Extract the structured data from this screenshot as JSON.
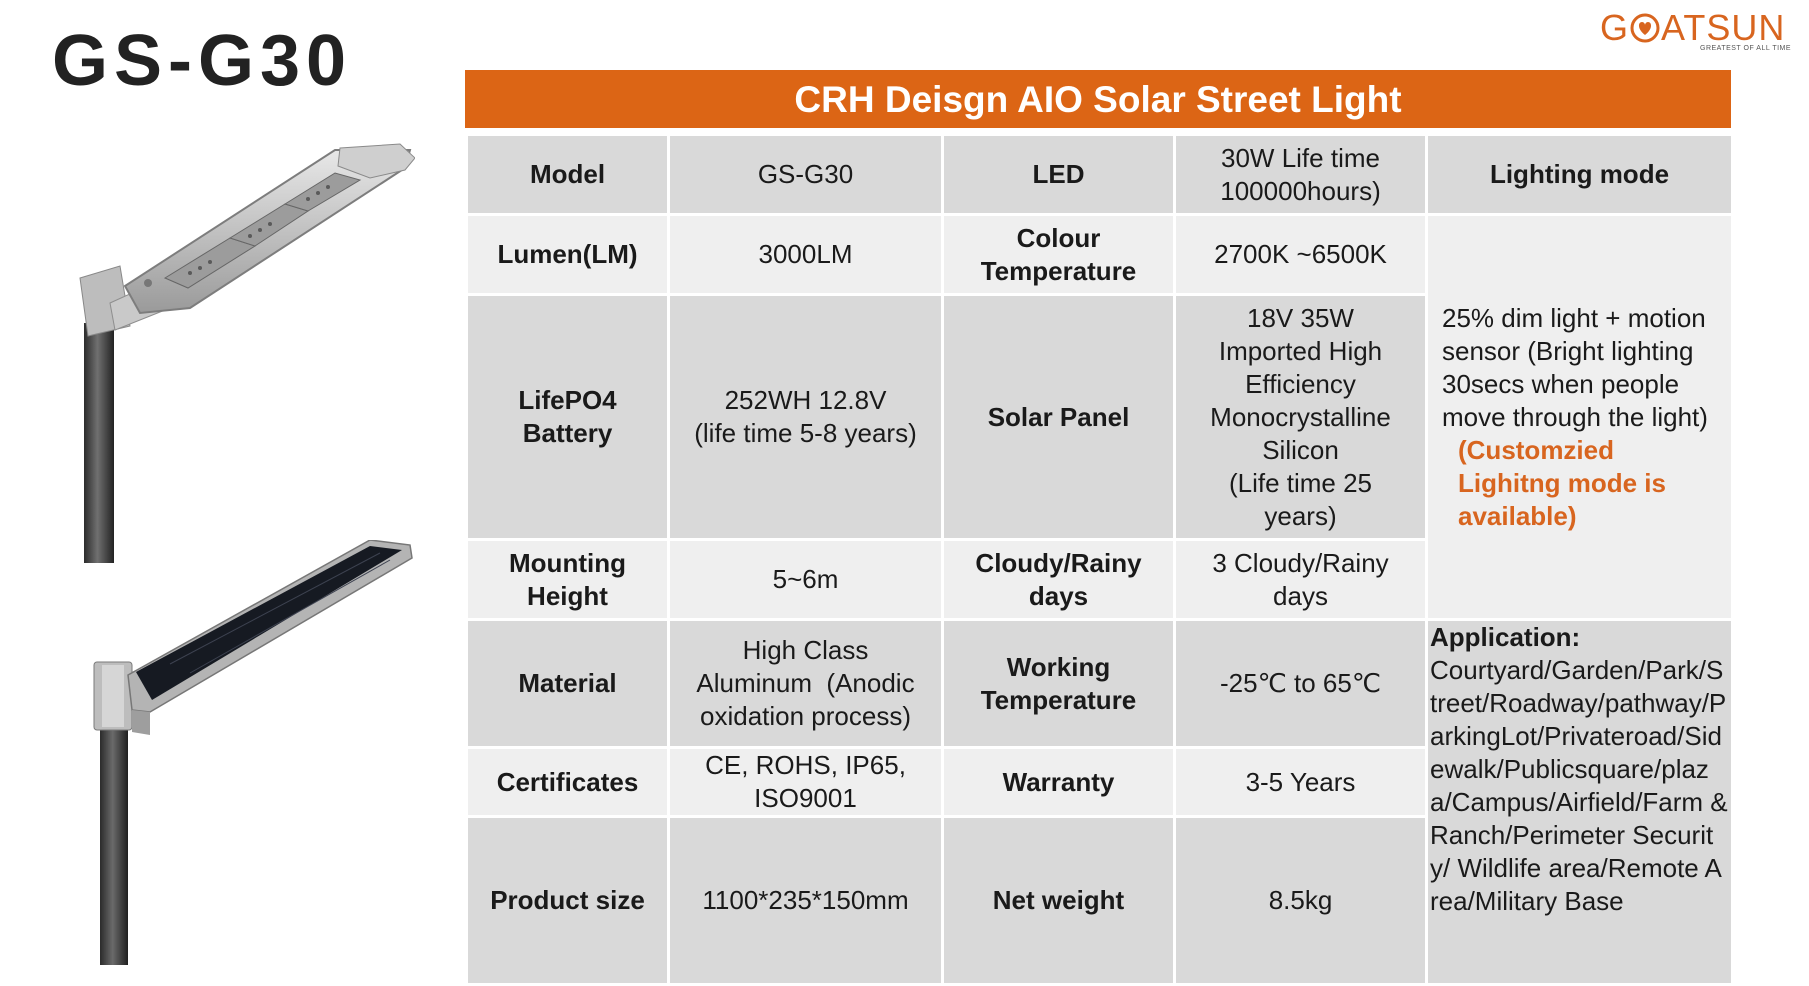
{
  "title": "GS-G30",
  "logo": {
    "text_before": "G",
    "text_after": "ATSUN",
    "tagline": "GREATEST OF ALL TIME",
    "brand_color": "#d8651f",
    "icon": "heart-icon"
  },
  "banner": {
    "text": "CRH Deisgn AIO Solar Street Light",
    "color": "#dc6515"
  },
  "specs": {
    "model": {
      "label": "Model",
      "value": "GS-G30"
    },
    "led": {
      "label": "LED",
      "value_line1": "30W Life time",
      "value_line2": "100000hours)"
    },
    "lumen": {
      "label": "Lumen(LM)",
      "value": "3000LM"
    },
    "colour_temperature": {
      "label_line1": "Colour",
      "label_line2": "Temperature",
      "value": "2700K ~6500K"
    },
    "battery": {
      "label_line1": "LifePO4",
      "label_line2": "Battery",
      "value_line1": "252WH 12.8V",
      "value_line2": "(life time 5-8 years)"
    },
    "solar_panel": {
      "label": "Solar Panel",
      "value_lines": [
        "18V 35W",
        "Imported High",
        "Efficiency",
        "Monocrystalline",
        "Silicon",
        "(Life time 25",
        "years)"
      ]
    },
    "mounting_height": {
      "label_line1": "Mounting",
      "label_line2": "Height",
      "value": "5~6m"
    },
    "cloudy_days": {
      "label_line1": "Cloudy/Rainy",
      "label_line2": "days",
      "value_line1": "3 Cloudy/Rainy",
      "value_line2": "days"
    },
    "material": {
      "label": "Material",
      "value_lines": [
        "High Class",
        "Aluminum  (Anodic",
        "oxidation process)"
      ]
    },
    "working_temperature": {
      "label_line1": "Working",
      "label_line2": "Temperature",
      "value": "-25℃ to 65℃"
    },
    "certificates": {
      "label": "Certificates",
      "value_line1": "CE, ROHS, IP65,",
      "value_line2": "ISO9001"
    },
    "warranty": {
      "label": "Warranty",
      "value": "3-5 Years"
    },
    "product_size": {
      "label": "Product size",
      "value": "1100*235*150mm"
    },
    "net_weight": {
      "label": "Net weight",
      "value": "8.5kg"
    }
  },
  "lighting_mode": {
    "label": "Lighting mode",
    "description": "25% dim light + motion sensor (Bright lighting 30secs when people move through the light)",
    "custom_note": "(Customzied Lighitng mode is available)"
  },
  "application": {
    "label": "Application:",
    "text": "Courtyard/Garden/Park/Street/Roadway/pathway/ParkingLot/Privateroad/Sidewalk/Publicsquare/plaza/Campus/Airfield/Farm & Ranch/Perimeter Security/ Wildlife area/Remote Area/Military Base"
  }
}
